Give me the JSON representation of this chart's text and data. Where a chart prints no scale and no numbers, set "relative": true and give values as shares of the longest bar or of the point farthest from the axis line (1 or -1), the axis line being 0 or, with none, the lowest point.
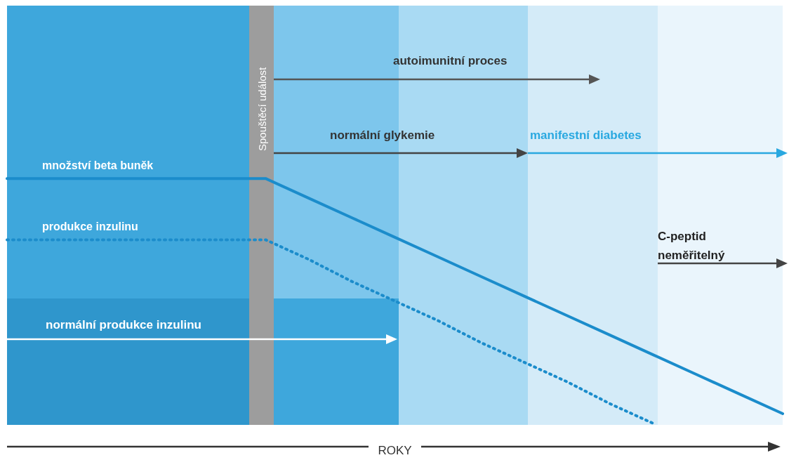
{
  "chart_data": {
    "type": "line",
    "relative": true,
    "xlabel": "ROKY",
    "grid": false,
    "legend": false,
    "marker": "none",
    "categories": [
      null,
      null,
      null,
      null,
      null,
      null,
      null,
      null,
      null,
      null,
      null,
      null,
      null,
      null,
      null,
      null,
      null,
      null,
      null
    ],
    "series": [
      {
        "name": "množství beta buněk",
        "color": "#1b8ccb",
        "values": [
          1,
          1,
          1,
          1,
          1,
          1,
          1,
          0.92,
          0.84,
          0.76,
          0.68,
          0.6,
          0.52,
          0.44,
          0.36,
          0.28,
          0.2,
          0.12,
          0.04
        ],
        "line_style": "solid"
      },
      {
        "name": "produkce inzulinu",
        "color": "#1b8ccb",
        "values": [
          0.75,
          0.75,
          0.75,
          0.75,
          0.75,
          0.75,
          0.75,
          0.67,
          0.58,
          0.5,
          0.42,
          0.33,
          0.25,
          0.17,
          0.08,
          0,
          null,
          null,
          null
        ],
        "line_style": "dotted"
      }
    ],
    "annotations": [
      "autoimunitní proces",
      "normální glykemie",
      "manifestní diabetes",
      "C-peptid\nneměřitelný",
      "normální produkce inzulinu",
      "Spouštěcí událost"
    ]
  }
}
